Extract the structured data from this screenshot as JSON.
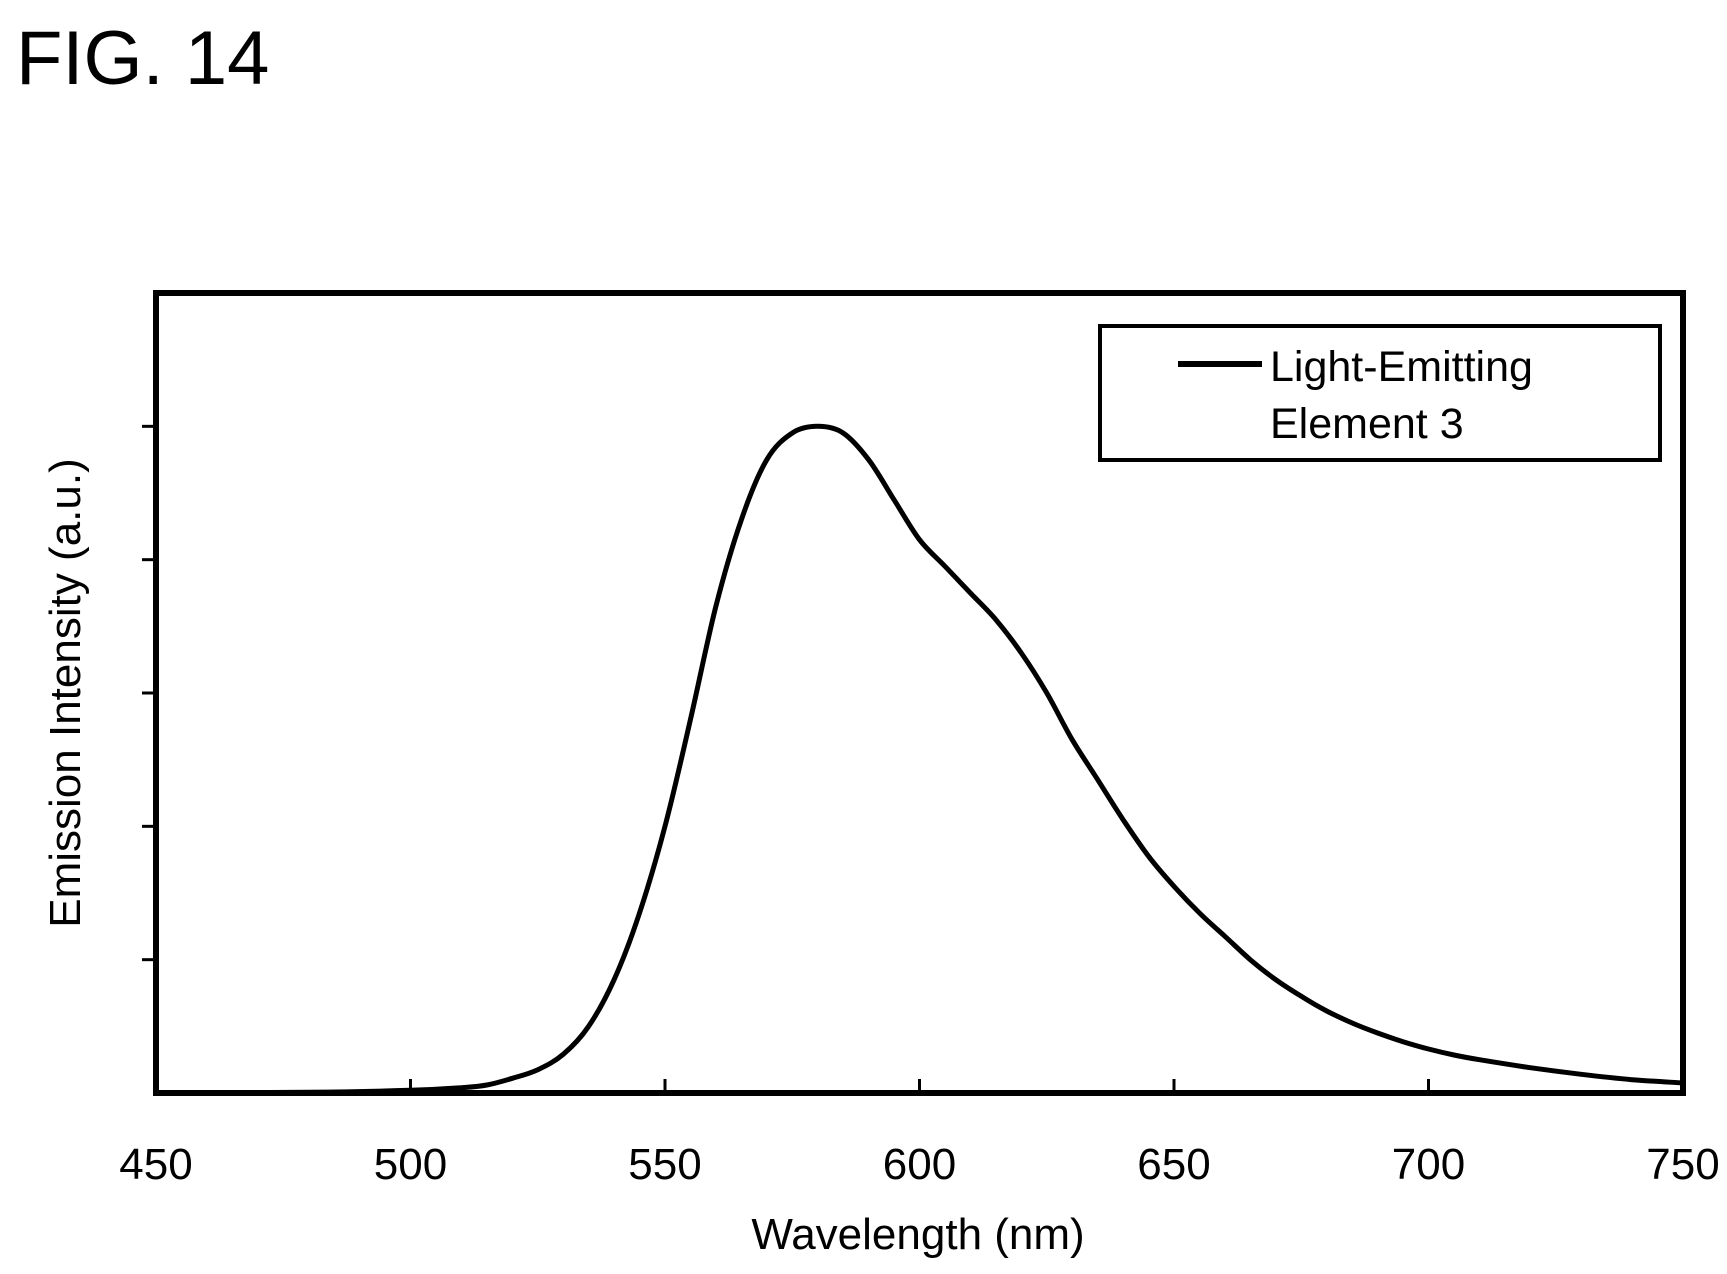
{
  "figure_label": "FIG. 14",
  "chart_data": {
    "type": "line",
    "title": "",
    "xlabel": "Wavelength (nm)",
    "ylabel": "Emission Intensity (a.u.)",
    "xlim": [
      450,
      750
    ],
    "ylim": [
      0,
      1.2
    ],
    "y_tick_values": [
      0.2,
      0.4,
      0.6,
      0.8,
      1.0
    ],
    "y_tick_labels_shown": false,
    "x_ticks": [
      450,
      500,
      550,
      600,
      650,
      700,
      750
    ],
    "x_tick_labels": [
      "450",
      "500",
      "550",
      "600",
      "650",
      "700",
      "750"
    ],
    "grid": false,
    "legend": {
      "position": "top-right",
      "line1": "Light-Emitting",
      "line2": "Element 3"
    },
    "line_color": "#000000",
    "series": [
      {
        "name": "Light-Emitting Element 3",
        "x": [
          450,
          480,
          500,
          510,
          515,
          520,
          525,
          530,
          535,
          540,
          545,
          550,
          555,
          560,
          565,
          570,
          575,
          580,
          585,
          590,
          595,
          600,
          605,
          610,
          615,
          620,
          625,
          630,
          635,
          640,
          645,
          650,
          655,
          660,
          665,
          670,
          675,
          680,
          685,
          690,
          695,
          700,
          705,
          710,
          720,
          730,
          740,
          750
        ],
        "y": [
          0,
          0.001,
          0.004,
          0.008,
          0.012,
          0.022,
          0.035,
          0.058,
          0.1,
          0.17,
          0.27,
          0.4,
          0.56,
          0.73,
          0.86,
          0.95,
          0.99,
          1.0,
          0.99,
          0.95,
          0.89,
          0.83,
          0.79,
          0.75,
          0.71,
          0.66,
          0.6,
          0.53,
          0.47,
          0.41,
          0.355,
          0.31,
          0.27,
          0.235,
          0.2,
          0.17,
          0.145,
          0.123,
          0.105,
          0.09,
          0.077,
          0.066,
          0.057,
          0.05,
          0.038,
          0.028,
          0.02,
          0.015
        ]
      }
    ]
  }
}
